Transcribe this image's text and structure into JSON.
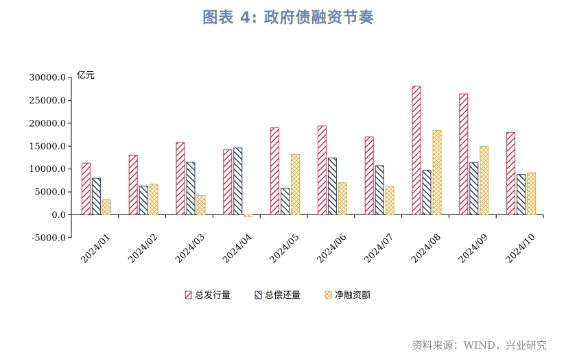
{
  "title": "图表 4: 政府债融资节奏",
  "source": "资料来源：WIND，兴业研究",
  "chart_data": {
    "type": "bar",
    "unit_label": "亿元",
    "categories": [
      "2024/01",
      "2024/02",
      "2024/03",
      "2024/04",
      "2024/05",
      "2024/06",
      "2024/07",
      "2024/08",
      "2024/09",
      "2024/10"
    ],
    "series": [
      {
        "name": "总发行量",
        "color": "#c0304a",
        "pattern": "diag-right",
        "values": [
          11300,
          13000,
          15800,
          14200,
          19000,
          19400,
          17000,
          28100,
          26400,
          18000
        ]
      },
      {
        "name": "总偿还量",
        "color": "#2e3f55",
        "pattern": "diag-left",
        "values": [
          8000,
          6300,
          11500,
          14600,
          5800,
          12400,
          10700,
          9700,
          11400,
          8800
        ]
      },
      {
        "name": "净融资额",
        "color": "#e0b040",
        "pattern": "cross",
        "values": [
          3300,
          6700,
          4200,
          -400,
          13200,
          7000,
          6200,
          18400,
          15000,
          9200
        ]
      }
    ],
    "ylim": [
      -5000,
      30000
    ],
    "yticks": [
      "-5000.0",
      "0.0",
      "5000.0",
      "10000.0",
      "15000.0",
      "20000.0",
      "25000.0",
      "30000.0"
    ],
    "legend_position": "bottom",
    "grid": false
  }
}
